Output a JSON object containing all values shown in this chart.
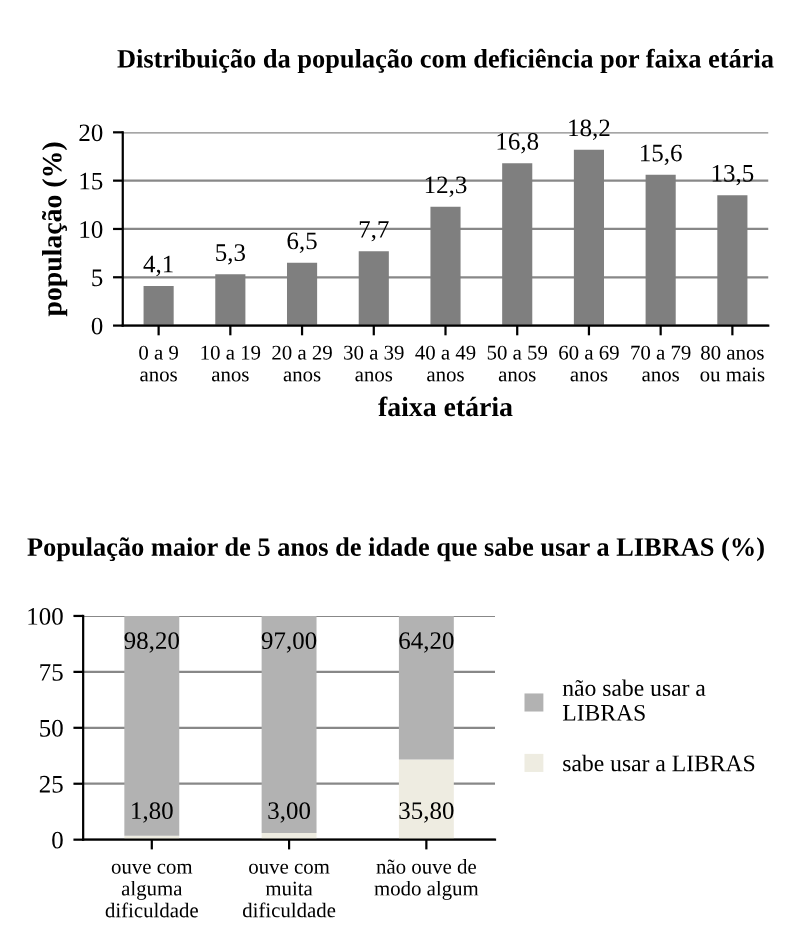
{
  "chart_data": [
    {
      "type": "bar",
      "title": "Distribuição da população com deficiência por faixa etária",
      "xlabel": "faixa etária",
      "ylabel": "população (%)",
      "categories": [
        "0 a 9\nanos",
        "10 a 19\nanos",
        "20 a 29\nanos",
        "30 a 39\nanos",
        "40 a 49\nanos",
        "50 a 59\nanos",
        "60 a 69\nanos",
        "70 a 79\nanos",
        "80 anos\nou mais"
      ],
      "series": [
        {
          "color": "#7f7f7f",
          "values": [
            4.1,
            5.3,
            6.5,
            7.7,
            12.3,
            16.8,
            18.2,
            15.6,
            13.5
          ],
          "value_labels": [
            "4,1",
            "5,3",
            "6,5",
            "7,7",
            "12,3",
            "16,8",
            "18,2",
            "15,6",
            "13,5"
          ]
        }
      ],
      "ylim": [
        0,
        20
      ],
      "yticks": [
        0,
        5,
        10,
        15,
        20
      ],
      "grid": "y",
      "legend": false
    },
    {
      "type": "bar",
      "stacked": true,
      "title": "População maior de 5 anos de idade que sabe usar a LIBRAS (%)",
      "categories": [
        "ouve com\nalguma\ndificuldade",
        "ouve com\nmuita\ndificuldade",
        "não ouve de\nmodo algum"
      ],
      "series": [
        {
          "name": "sabe usar a LIBRAS",
          "color": "#eeece1",
          "values": [
            1.8,
            3.0,
            35.8
          ],
          "value_labels": [
            "1,80",
            "3,00",
            "35,80"
          ]
        },
        {
          "name": "não sabe usar a\nLIBRAS",
          "color": "#b2b2b2",
          "values": [
            98.2,
            97.0,
            64.2
          ],
          "value_labels": [
            "98,20",
            "97,00",
            "64,20"
          ]
        }
      ],
      "ylim": [
        0,
        100
      ],
      "yticks": [
        0,
        25,
        50,
        75,
        100
      ],
      "grid": "y",
      "legend": "right"
    }
  ]
}
